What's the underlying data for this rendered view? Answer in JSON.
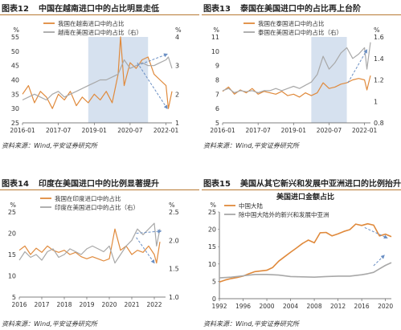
{
  "colors": {
    "orange": "#e08a3c",
    "gray": "#a8a8a8",
    "shade": "#cfdcec",
    "arrow": "#6a8fc4",
    "header_rule": "#b87a33"
  },
  "figure_title_line": "",
  "panels": [
    {
      "num": "图表12",
      "title": "中国在越南进口中的占比明显走低",
      "source": "资料来源：Wind,平安证券研究所"
    },
    {
      "num": "图表13",
      "title": "泰国在美国进口中的占比再上台阶",
      "source": "资料来源：Wind,平安证券研究所"
    },
    {
      "num": "图表14",
      "title": "印度在美国进口中的比例显著提升",
      "source": "资料来源：Wind,平安证券研究所"
    },
    {
      "num": "图表15",
      "title": "美国从其它新兴和发展中亚洲进口的比例抬升",
      "source": "资料来源：Wind,平安证券研究所"
    }
  ],
  "chart_data": [
    {
      "type": "line",
      "left_unit": "%",
      "right_unit": "%",
      "ylim_left": [
        25,
        55
      ],
      "yticks_left": [
        "25",
        "30",
        "35",
        "40",
        "45",
        "50",
        "55"
      ],
      "ylim_right": [
        1,
        4
      ],
      "yticks_right": [
        "1",
        "2",
        "3",
        "4"
      ],
      "xlim": [
        2016,
        2022.25
      ],
      "xticks": [
        {
          "v": 2016,
          "label": "2016-01"
        },
        {
          "v": 2017.5,
          "label": "2017-07"
        },
        {
          "v": 2019,
          "label": "2019-01"
        },
        {
          "v": 2020.5,
          "label": "2020-07"
        },
        {
          "v": 2022,
          "label": "2022-01"
        }
      ],
      "shade": [
        2018.75,
        2021.25
      ],
      "series": [
        {
          "name": "我国在越南进口中的占比",
          "axis": "left",
          "color": "orange",
          "x": [
            2016,
            2016.25,
            2016.5,
            2016.75,
            2017,
            2017.25,
            2017.5,
            2017.75,
            2018,
            2018.25,
            2018.5,
            2018.75,
            2019,
            2019.25,
            2019.5,
            2019.75,
            2020,
            2020.1,
            2020.25,
            2020.5,
            2020.75,
            2021,
            2021.25,
            2021.5,
            2021.75,
            2022,
            2022.1,
            2022.25
          ],
          "values": [
            35,
            38,
            32,
            36,
            34,
            30,
            35,
            33,
            36,
            31,
            34,
            32,
            35,
            33,
            36,
            32,
            42,
            55,
            38,
            46,
            44,
            47,
            48,
            42,
            40,
            38,
            30,
            36
          ]
        },
        {
          "name": "越南在美国进口中的占比（右）",
          "axis": "right",
          "color": "gray",
          "x": [
            2016,
            2016.25,
            2016.5,
            2016.75,
            2017,
            2017.25,
            2017.5,
            2017.75,
            2018,
            2018.25,
            2018.5,
            2018.75,
            2019,
            2019.25,
            2019.5,
            2019.75,
            2020,
            2020.25,
            2020.5,
            2020.75,
            2021,
            2021.25,
            2021.5,
            2021.75,
            2022,
            2022.1,
            2022.25
          ],
          "values": [
            1.8,
            1.9,
            2.0,
            1.9,
            1.8,
            2.0,
            2.1,
            1.9,
            2.0,
            2.1,
            2.2,
            2.3,
            2.4,
            2.5,
            2.5,
            2.6,
            2.7,
            3.2,
            2.9,
            3.0,
            3.1,
            3.0,
            3.0,
            3.1,
            3.2,
            3.3,
            2.9
          ]
        }
      ],
      "arrows": [
        {
          "x1": 2020.8,
          "y1": 45,
          "x2": 2022.05,
          "y2": 49
        },
        {
          "x1": 2020.8,
          "y1": 46,
          "x2": 2022.05,
          "y2": 30
        }
      ]
    },
    {
      "type": "line",
      "left_unit": "%",
      "right_unit": "%",
      "ylim_left": [
        5,
        11
      ],
      "yticks_left": [
        "5",
        "6",
        "7",
        "8",
        "9",
        "10",
        "11"
      ],
      "ylim_right": [
        0.8,
        1.6
      ],
      "yticks_right": [
        "0.8",
        "1",
        "1.2",
        "1.4",
        "1.6"
      ],
      "xlim": [
        2016,
        2022.25
      ],
      "xticks": [
        {
          "v": 2016,
          "label": "2016-01"
        },
        {
          "v": 2017.5,
          "label": "2017-07"
        },
        {
          "v": 2019,
          "label": "2019-01"
        },
        {
          "v": 2020.5,
          "label": "2020-07"
        },
        {
          "v": 2022,
          "label": "2022-01"
        }
      ],
      "shade": [
        2019.75,
        2021.25
      ],
      "series": [
        {
          "name": "我国在泰国进口中的占比",
          "axis": "left",
          "color": "orange",
          "x": [
            2016,
            2016.25,
            2016.5,
            2016.75,
            2017,
            2017.25,
            2017.5,
            2017.75,
            2018,
            2018.25,
            2018.5,
            2018.75,
            2019,
            2019.25,
            2019.5,
            2019.75,
            2020,
            2020.25,
            2020.5,
            2020.75,
            2021,
            2021.25,
            2021.5,
            2021.75,
            2022,
            2022.1,
            2022.25
          ],
          "values": [
            7.2,
            7.5,
            7.0,
            7.3,
            7.1,
            7.4,
            7.0,
            7.2,
            7.1,
            7.0,
            7.2,
            6.9,
            7.0,
            6.8,
            7.1,
            6.9,
            7.1,
            7.8,
            7.4,
            7.5,
            7.7,
            7.8,
            8.0,
            8.1,
            8.0,
            7.3,
            8.3
          ]
        },
        {
          "name": "泰国在美国进口中的占比（右）",
          "axis": "right",
          "color": "gray",
          "x": [
            2016,
            2016.25,
            2016.5,
            2016.75,
            2017,
            2017.25,
            2017.5,
            2017.75,
            2018,
            2018.25,
            2018.5,
            2018.75,
            2019,
            2019.25,
            2019.5,
            2019.75,
            2020,
            2020.25,
            2020.5,
            2020.75,
            2021,
            2021.25,
            2021.5,
            2021.75,
            2022,
            2022.1,
            2022.25
          ],
          "values": [
            1.1,
            1.12,
            1.08,
            1.1,
            1.09,
            1.1,
            1.08,
            1.1,
            1.1,
            1.12,
            1.1,
            1.12,
            1.14,
            1.12,
            1.15,
            1.18,
            1.25,
            1.42,
            1.3,
            1.36,
            1.45,
            1.5,
            1.4,
            1.44,
            1.5,
            1.3,
            1.55
          ]
        }
      ],
      "arrows": [
        {
          "x1": 2021.3,
          "y1": 7.8,
          "x2": 2022.1,
          "y2": 10.1
        }
      ]
    },
    {
      "type": "line",
      "left_unit": "%",
      "right_unit": "%",
      "ylim_left": [
        5,
        25
      ],
      "yticks_left": [
        "5",
        "10",
        "15",
        "20",
        "25"
      ],
      "ylim_right": [
        1.0,
        2.5
      ],
      "yticks_right": [
        "1.0",
        "1.5",
        "2.0",
        "2.5"
      ],
      "xlim": [
        2016,
        2022.5
      ],
      "xticks": [
        {
          "v": 2016,
          "label": "2016"
        },
        {
          "v": 2017,
          "label": "2017"
        },
        {
          "v": 2018,
          "label": "2018"
        },
        {
          "v": 2019,
          "label": "2019"
        },
        {
          "v": 2020,
          "label": "2020"
        },
        {
          "v": 2021,
          "label": "2021"
        },
        {
          "v": 2022,
          "label": "2022"
        }
      ],
      "shade": null,
      "series": [
        {
          "name": "我国在印度进口中的占比",
          "axis": "left",
          "color": "orange",
          "x": [
            2016,
            2016.25,
            2016.5,
            2016.75,
            2017,
            2017.25,
            2017.5,
            2017.75,
            2018,
            2018.25,
            2018.5,
            2018.75,
            2019,
            2019.25,
            2019.5,
            2019.75,
            2020,
            2020.25,
            2020.5,
            2020.75,
            2021,
            2021.25,
            2021.5,
            2021.75,
            2022,
            2022.1,
            2022.25
          ],
          "values": [
            16,
            17,
            15,
            16.5,
            15.5,
            17,
            16,
            15.5,
            16,
            15,
            15.5,
            14.5,
            14,
            14.5,
            14,
            13.5,
            14,
            21,
            16,
            17,
            15,
            16,
            15.5,
            17,
            15,
            13,
            18
          ]
        },
        {
          "name": "印度在美国进口中的占比（右）",
          "axis": "right",
          "color": "gray",
          "x": [
            2016,
            2016.25,
            2016.5,
            2016.75,
            2017,
            2017.25,
            2017.5,
            2017.75,
            2018,
            2018.25,
            2018.5,
            2018.75,
            2019,
            2019.25,
            2019.5,
            2019.75,
            2020,
            2020.25,
            2020.5,
            2020.75,
            2021,
            2021.25,
            2021.5,
            2021.75,
            2022,
            2022.1,
            2022.25
          ],
          "values": [
            1.65,
            1.8,
            1.7,
            1.75,
            1.65,
            1.8,
            1.85,
            1.7,
            1.75,
            1.85,
            1.8,
            1.75,
            1.85,
            1.9,
            1.85,
            1.8,
            1.9,
            1.6,
            1.75,
            1.9,
            2.0,
            2.2,
            2.1,
            2.2,
            2.3,
            1.9,
            2.2
          ]
        }
      ],
      "arrows": [
        {
          "x1": 2021.2,
          "y1": 20,
          "x2": 2022.3,
          "y2": 20.5
        },
        {
          "x1": 2021.2,
          "y1": 19,
          "x2": 2022.0,
          "y2": 13
        }
      ]
    },
    {
      "type": "line",
      "title": "美国进口金额占比",
      "left_unit": "%",
      "ylim": [
        0,
        25
      ],
      "yticks": [
        "0",
        "5",
        "10",
        "15",
        "20",
        "25"
      ],
      "xlim": [
        1992,
        2021
      ],
      "xticks": [
        "1992",
        "1996",
        "2000",
        "2004",
        "2008",
        "2012",
        "2016",
        "2020"
      ],
      "series": [
        {
          "name": "中国大陆",
          "color": "orange",
          "x": [
            1992,
            1993,
            1994,
            1995,
            1996,
            1997,
            1998,
            1999,
            2000,
            2001,
            2002,
            2003,
            2004,
            2005,
            2006,
            2007,
            2008,
            2009,
            2010,
            2011,
            2012,
            2013,
            2014,
            2015,
            2016,
            2017,
            2018,
            2019,
            2020,
            2021
          ],
          "values": [
            4.8,
            5.4,
            5.8,
            6.1,
            6.5,
            7.2,
            7.8,
            8.0,
            8.2,
            9.0,
            10.8,
            12.1,
            13.4,
            14.6,
            15.9,
            16.9,
            16.1,
            19.0,
            19.1,
            18.1,
            18.7,
            19.4,
            19.9,
            21.5,
            21.1,
            21.6,
            21.2,
            18.1,
            18.6,
            17.9
          ]
        },
        {
          "name": "除中国大陆外的新兴和发展中亚洲",
          "color": "gray",
          "x": [
            1992,
            1994,
            1996,
            1998,
            2000,
            2002,
            2004,
            2006,
            2008,
            2010,
            2012,
            2014,
            2016,
            2017,
            2018,
            2019,
            2020,
            2021
          ],
          "values": [
            6.0,
            6.2,
            6.6,
            7.0,
            7.0,
            6.8,
            6.4,
            6.3,
            6.2,
            6.4,
            6.5,
            6.5,
            6.9,
            7.2,
            7.6,
            8.6,
            9.6,
            10.4
          ]
        }
      ],
      "arrows": [
        {
          "x1": 2016.5,
          "y1": 20.5,
          "x2": 2020.3,
          "y2": 17.5
        },
        {
          "x1": 2018.0,
          "y1": 9.5,
          "x2": 2019.8,
          "y2": 12.5
        }
      ]
    }
  ]
}
